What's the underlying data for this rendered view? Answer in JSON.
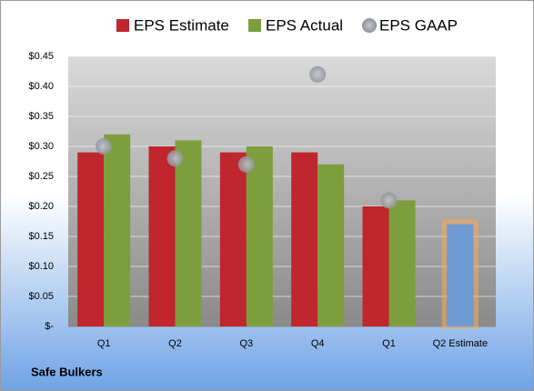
{
  "chart_data": {
    "type": "bar",
    "title": "Safe Bulkers",
    "categories": [
      "Q1",
      "Q2",
      "Q3",
      "Q4",
      "Q1",
      "Q2 Estimate"
    ],
    "series": [
      {
        "name": "EPS Estimate",
        "color": "#c0262d",
        "values": [
          0.29,
          0.3,
          0.29,
          0.29,
          0.2,
          0.17
        ],
        "highlight_index": 5,
        "highlight_color": "#6f9bd5",
        "highlight_glow": "#f5a65b"
      },
      {
        "name": "EPS Actual",
        "color": "#7d9e3c",
        "values": [
          0.32,
          0.31,
          0.3,
          0.27,
          0.21,
          null
        ]
      },
      {
        "name": "EPS GAAP",
        "color": "#a9adb3",
        "type": "scatter",
        "values": [
          0.3,
          0.28,
          0.27,
          0.42,
          0.21,
          null
        ]
      }
    ],
    "ylim": [
      0,
      0.45
    ],
    "yticks": [
      {
        "value": 0,
        "label": "$-"
      },
      {
        "value": 0.05,
        "label": "$0.05"
      },
      {
        "value": 0.1,
        "label": "$0.10"
      },
      {
        "value": 0.15,
        "label": "$0.15"
      },
      {
        "value": 0.2,
        "label": "$0.20"
      },
      {
        "value": 0.25,
        "label": "$0.25"
      },
      {
        "value": 0.3,
        "label": "$0.30"
      },
      {
        "value": 0.35,
        "label": "$0.35"
      },
      {
        "value": 0.4,
        "label": "$0.40"
      },
      {
        "value": 0.45,
        "label": "$0.45"
      }
    ],
    "grid": true
  }
}
